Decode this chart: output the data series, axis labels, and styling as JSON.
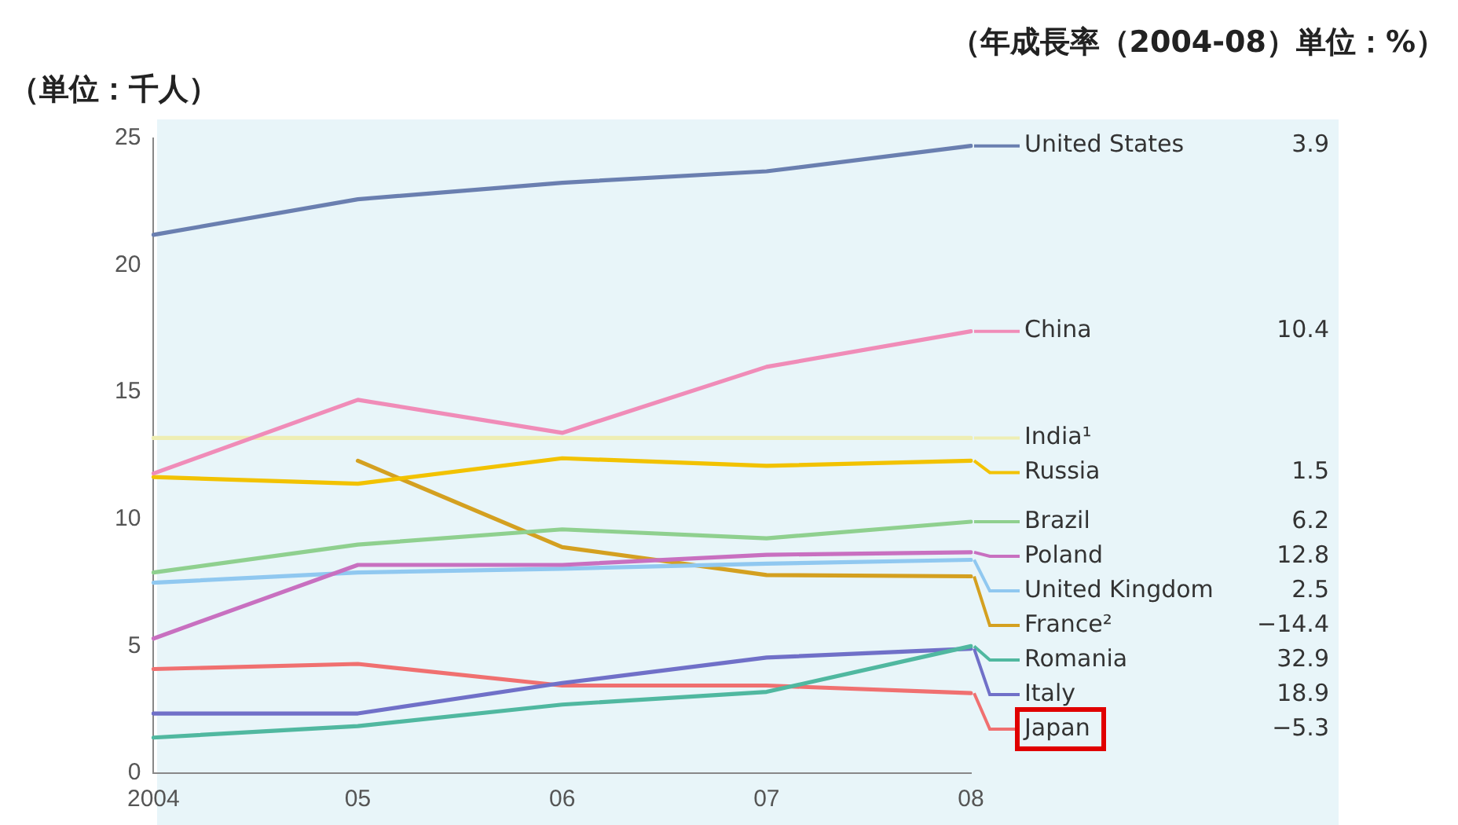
{
  "chart_data": {
    "type": "line",
    "ylabel": "（単位：千人）",
    "subtitle": "（年成長率（2004-08）単位：%）",
    "categories": [
      "2004",
      "05",
      "06",
      "07",
      "08"
    ],
    "ylim": [
      0,
      25
    ],
    "yticks": [
      0,
      5,
      10,
      15,
      20,
      25
    ],
    "grid": false,
    "legend": "right",
    "marker": "none",
    "line_style": "solid",
    "series": [
      {
        "name": "United States",
        "color": "#6a7fb0",
        "values": [
          21.2,
          22.6,
          23.25,
          23.7,
          24.7
        ]
      },
      {
        "name": "China",
        "color": "#f08cb8",
        "values": [
          11.8,
          14.7,
          13.4,
          16.0,
          17.4
        ]
      },
      {
        "name": "India¹",
        "color": "#eeeeb4",
        "values": [
          13.2,
          13.2,
          13.2,
          13.2,
          13.2
        ]
      },
      {
        "name": "Russia",
        "color": "#f2c200",
        "values": [
          11.66,
          11.4,
          12.4,
          12.1,
          12.3
        ]
      },
      {
        "name": "Brazil",
        "color": "#8fd08f",
        "values": [
          7.9,
          9.0,
          9.6,
          9.25,
          9.9
        ]
      },
      {
        "name": "Poland",
        "color": "#c870c0",
        "values": [
          5.3,
          8.2,
          8.2,
          8.6,
          8.7
        ]
      },
      {
        "name": "United Kingdom",
        "color": "#90c8f0",
        "values": [
          7.5,
          7.9,
          8.05,
          8.25,
          8.4
        ]
      },
      {
        "name": "France²",
        "color": "#d4a020",
        "values": [
          null,
          12.3,
          8.9,
          7.8,
          7.75
        ]
      },
      {
        "name": "Romania",
        "color": "#50b8a0",
        "values": [
          1.4,
          1.85,
          2.7,
          3.2,
          5.0
        ]
      },
      {
        "name": "Italy",
        "color": "#7070c8",
        "values": [
          2.35,
          2.35,
          3.55,
          4.55,
          4.9
        ]
      },
      {
        "name": "Japan",
        "color": "#f07070",
        "values": [
          4.1,
          4.3,
          3.45,
          3.45,
          3.15
        ]
      }
    ],
    "annotations": [
      "3.9",
      "10.4",
      "1.5",
      "6.2",
      "12.8",
      "2.5",
      "−14.4",
      "32.9",
      "18.9",
      "−5.3"
    ]
  }
}
